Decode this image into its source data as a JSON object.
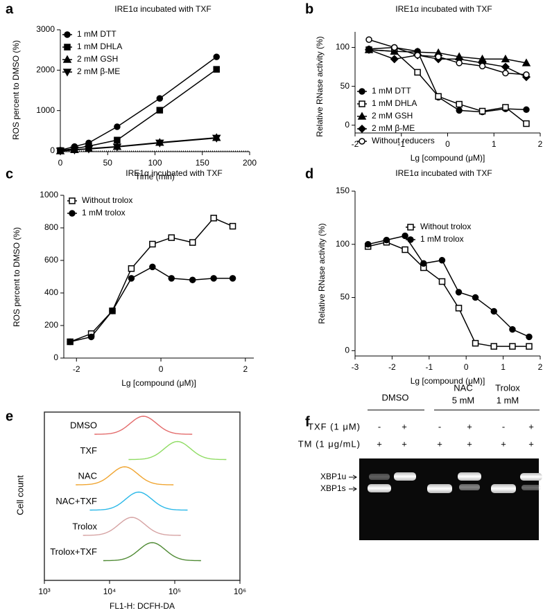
{
  "chart_data": [
    {
      "panel": "a",
      "type": "line",
      "title": "IRE1α incubated with TXF",
      "xlabel": "Time (min)",
      "ylabel": "ROS percent to DMSO (%)",
      "x": [
        0,
        15,
        30,
        60,
        105,
        165
      ],
      "xlim": [
        0,
        200
      ],
      "xticks": [
        0,
        50,
        100,
        150,
        200
      ],
      "ylim": [
        0,
        3000
      ],
      "yticks": [
        0,
        1000,
        2000,
        3000
      ],
      "legend": "upper left",
      "series": [
        {
          "name": "1 mM DTT",
          "marker": "circle",
          "color": "#000000",
          "values": [
            20,
            110,
            200,
            600,
            1300,
            2330
          ]
        },
        {
          "name": "1 mM DHLA",
          "marker": "square",
          "color": "#000000",
          "values": [
            10,
            60,
            120,
            270,
            1010,
            2020
          ]
        },
        {
          "name": "2 mM GSH",
          "marker": "triangle",
          "color": "#000000",
          "values": [
            0,
            30,
            60,
            110,
            210,
            330
          ]
        },
        {
          "name": "2 mM β-ME",
          "marker": "triangle-down",
          "color": "#000000",
          "values": [
            0,
            25,
            50,
            100,
            200,
            320
          ]
        }
      ]
    },
    {
      "panel": "b",
      "type": "scatter",
      "title": "IRE1α incubated with TXF",
      "xlabel": "Lg [compound (μM)]",
      "ylabel": "Relative RNase activity (%)",
      "x": [
        -1.7,
        -1.15,
        -0.65,
        -0.2,
        0.25,
        0.75,
        1.25,
        1.7
      ],
      "xlim": [
        -2,
        2
      ],
      "xticks": [
        -2,
        -1,
        0,
        1,
        2
      ],
      "ylim": [
        -10,
        120
      ],
      "yticks": [
        0,
        50,
        100
      ],
      "legend": "lower left",
      "series": [
        {
          "name": "1 mM DTT",
          "marker": "circle",
          "color": "#000000",
          "values": [
            98,
            100,
            95,
            36,
            19,
            17,
            21,
            20
          ]
        },
        {
          "name": "1 mM DHLA",
          "marker": "square-open",
          "color": "#000000",
          "values": [
            97,
            95,
            68,
            37,
            27,
            18,
            23,
            2
          ]
        },
        {
          "name": "2 mM GSH",
          "marker": "triangle",
          "color": "#000000",
          "values": [
            97,
            95,
            94,
            93,
            88,
            85,
            85,
            80
          ]
        },
        {
          "name": "2 mM β-ME",
          "marker": "diamond",
          "color": "#000000",
          "values": [
            97,
            85,
            90,
            85,
            85,
            80,
            75,
            62
          ]
        },
        {
          "name": "Without reducers",
          "marker": "circle-open",
          "color": "#000000",
          "values": [
            110,
            100,
            90,
            88,
            80,
            76,
            67,
            65
          ]
        }
      ]
    },
    {
      "panel": "c",
      "type": "scatter",
      "title": "IRE1α incubated with TXF",
      "xlabel": "Lg [compound (μM)]",
      "ylabel": "ROS percent to DMSO (%)",
      "x": [
        -2.15,
        -1.65,
        -1.15,
        -0.7,
        -0.2,
        0.25,
        0.75,
        1.25,
        1.7
      ],
      "xlim": [
        -2.3,
        2.2
      ],
      "xticks": [
        -2,
        0,
        2
      ],
      "ylim": [
        0,
        1000
      ],
      "yticks": [
        0,
        200,
        400,
        600,
        800,
        1000
      ],
      "legend": "upper left",
      "series": [
        {
          "name": "Without trolox",
          "marker": "square-open",
          "color": "#000000",
          "values": [
            100,
            150,
            290,
            550,
            700,
            740,
            710,
            860,
            810
          ]
        },
        {
          "name": "1 mM trolox",
          "marker": "circle",
          "color": "#000000",
          "values": [
            100,
            130,
            290,
            490,
            560,
            490,
            480,
            490,
            490
          ]
        }
      ]
    },
    {
      "panel": "d",
      "type": "scatter",
      "title": "IRE1α incubated with TXF",
      "xlabel": "Lg [compound (μM)]",
      "ylabel": "Relative RNase activity (%)",
      "x": [
        -2.65,
        -2.15,
        -1.65,
        -1.15,
        -0.65,
        -0.2,
        0.25,
        0.75,
        1.25,
        1.7
      ],
      "xlim": [
        -3,
        2
      ],
      "xticks": [
        -3,
        -2,
        -1,
        0,
        1,
        2
      ],
      "ylim": [
        -5,
        150
      ],
      "yticks": [
        0,
        50,
        100,
        150
      ],
      "legend": "center right",
      "series": [
        {
          "name": "Without trolox",
          "marker": "square-open",
          "color": "#000000",
          "values": [
            98,
            102,
            95,
            78,
            65,
            40,
            7,
            4,
            4,
            4
          ]
        },
        {
          "name": "1 mM trolox",
          "marker": "circle",
          "color": "#000000",
          "values": [
            100,
            104,
            108,
            82,
            85,
            55,
            50,
            37,
            20,
            13
          ]
        }
      ]
    },
    {
      "panel": "e",
      "type": "flow",
      "xlabel": "FL1-H: DCFH-DA",
      "ylabel": "Cell count",
      "xscale": "log",
      "xlim": [
        1000,
        1000000
      ],
      "xticks": [
        {
          "value": 1000,
          "label": "10³"
        },
        {
          "value": 10000,
          "label": "10⁴"
        },
        {
          "value": 100000,
          "label": "10⁵"
        },
        {
          "value": 1000000,
          "label": "10⁶"
        }
      ],
      "series": [
        {
          "name": "DMSO",
          "color": "#e36b6b",
          "peak": 33000
        },
        {
          "name": "TXF",
          "color": "#8fdc63",
          "peak": 110000
        },
        {
          "name": "NAC",
          "color": "#f0a531",
          "peak": 17000
        },
        {
          "name": "NAC+TXF",
          "color": "#2ab8e8",
          "peak": 28000
        },
        {
          "name": "Trolox",
          "color": "#d6a3a3",
          "peak": 22000
        },
        {
          "name": "Trolox+TXF",
          "color": "#4f8a34",
          "peak": 45000
        }
      ]
    }
  ],
  "gel": {
    "panel": "f",
    "groups": [
      {
        "lines": [
          "DMSO"
        ]
      },
      {
        "lines": [
          "NAC",
          "5 mM"
        ]
      },
      {
        "lines": [
          "Trolox",
          "1 mM"
        ]
      }
    ],
    "rows": [
      {
        "label": "TXF (1 μM)",
        "signs": [
          "-",
          "+",
          "-",
          "+",
          "-",
          "+"
        ]
      },
      {
        "label": "TM (1 μg/mL)",
        "signs": [
          "+",
          "+",
          "+",
          "+",
          "+",
          "+"
        ]
      }
    ],
    "bands": [
      "XBP1u",
      "XBP1s"
    ]
  }
}
